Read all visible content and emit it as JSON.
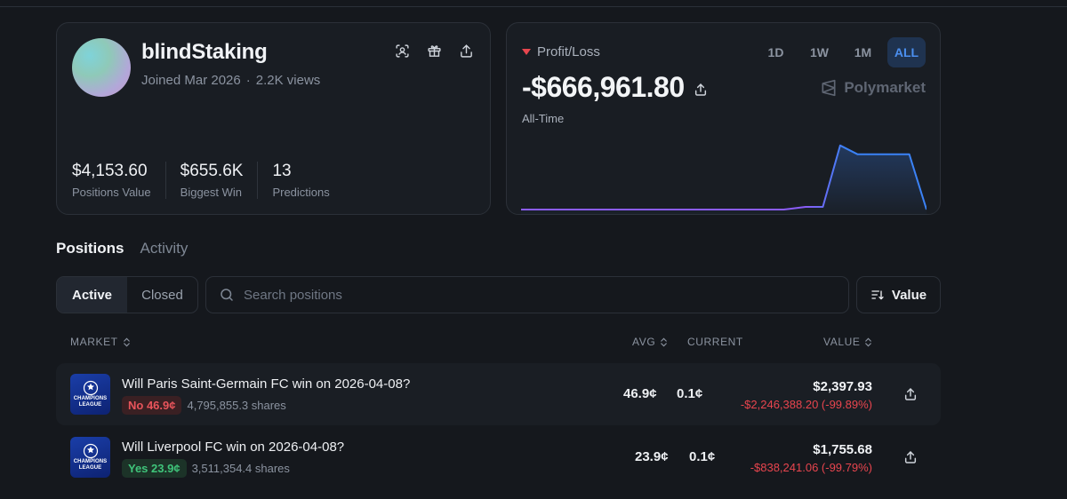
{
  "profile": {
    "username": "blindStaking",
    "joined": "Joined Mar 2026",
    "views": "2.2K views",
    "stats": [
      {
        "value": "$4,153.60",
        "label": "Positions Value"
      },
      {
        "value": "$655.6K",
        "label": "Biggest Win"
      },
      {
        "value": "13",
        "label": "Predictions"
      }
    ]
  },
  "pnl": {
    "label": "Profit/Loss",
    "value": "-$666,961.80",
    "period": "All-Time",
    "ranges": [
      "1D",
      "1W",
      "1M",
      "ALL"
    ],
    "active_range": "ALL",
    "brand": "Polymarket",
    "line_color_start": "#8b5cf6",
    "line_color_end": "#3b82f6"
  },
  "chart_data": {
    "type": "area",
    "x": [
      0,
      1,
      2,
      3,
      4,
      5,
      6,
      7,
      8,
      9,
      10,
      11,
      12,
      13,
      14,
      15,
      16,
      17,
      18,
      19,
      20
    ],
    "values": [
      0,
      0,
      0,
      0,
      0,
      0,
      0,
      0,
      0,
      0,
      0,
      0,
      0,
      0.04,
      0.04,
      0.95,
      0.82,
      0.82,
      0.82,
      0.82,
      0
    ],
    "series_name": "",
    "title": "",
    "xlabel": "",
    "ylabel": "",
    "grid": false,
    "legend": "none"
  },
  "tabs": [
    "Positions",
    "Activity"
  ],
  "active_tab": "Positions",
  "filter": {
    "active": "Active",
    "closed": "Closed"
  },
  "search": {
    "placeholder": "Search positions"
  },
  "sort": {
    "label": "Value"
  },
  "columns": {
    "market": "MARKET",
    "avg": "AVG",
    "current": "CURRENT",
    "value": "VALUE"
  },
  "positions": [
    {
      "league": "CHAMPIONS LEAGUE",
      "title": "Will Paris Saint-Germain FC win on 2026-04-08?",
      "outcome": "No 46.9¢",
      "outcome_type": "no",
      "shares": "4,795,855.3 shares",
      "avg": "46.9¢",
      "current": "0.1¢",
      "value": "$2,397.93",
      "change": "-$2,246,388.20 (-99.89%)"
    },
    {
      "league": "CHAMPIONS LEAGUE",
      "title": "Will Liverpool FC win on 2026-04-08?",
      "outcome": "Yes 23.9¢",
      "outcome_type": "yes",
      "shares": "3,511,354.4 shares",
      "avg": "23.9¢",
      "current": "0.1¢",
      "value": "$1,755.68",
      "change": "-$838,241.06 (-99.79%)"
    }
  ]
}
